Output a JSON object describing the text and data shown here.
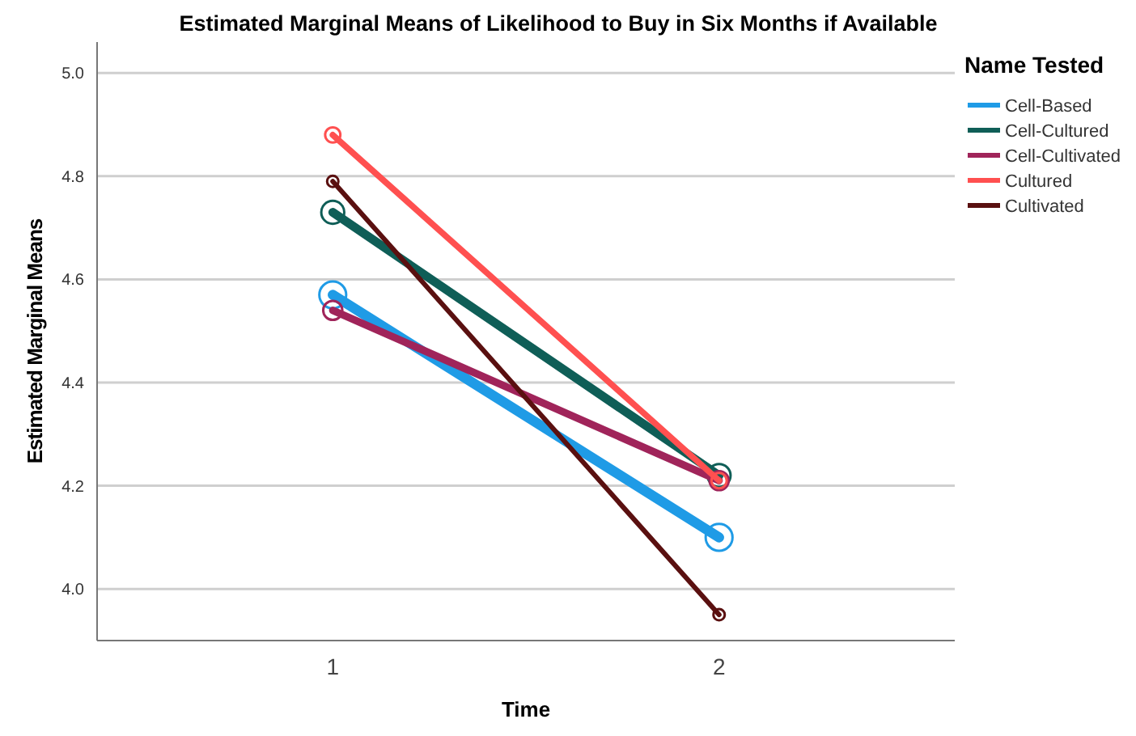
{
  "chart_data": {
    "type": "line",
    "title": "Estimated Marginal Means of Likelihood to Buy in Six Months if Available",
    "xlabel": "Time",
    "ylabel": "Estimated Marginal Means",
    "legend_title": "Name Tested",
    "categories": [
      "1",
      "2"
    ],
    "series": [
      {
        "name": "Cell-Based",
        "color": "#1f9be6",
        "values": [
          4.57,
          4.1
        ]
      },
      {
        "name": "Cell-Cultured",
        "color": "#0f5e57",
        "values": [
          4.73,
          4.22
        ]
      },
      {
        "name": "Cell-Cultivated",
        "color": "#a0245a",
        "values": [
          4.54,
          4.21
        ]
      },
      {
        "name": "Cultured",
        "color": "#ff5050",
        "values": [
          4.88,
          4.21
        ]
      },
      {
        "name": "Cultivated",
        "color": "#5a1010",
        "values": [
          4.79,
          3.95
        ]
      }
    ],
    "ylim": [
      3.9,
      5.06
    ],
    "yticks": [
      {
        "value": 4,
        "label": "4.0"
      },
      4.2,
      4.4,
      4.6,
      4.8,
      {
        "value": 5,
        "label": "5.0"
      }
    ],
    "grid": "y",
    "legend": "top right",
    "marker": "circle",
    "line_style": "solid"
  }
}
